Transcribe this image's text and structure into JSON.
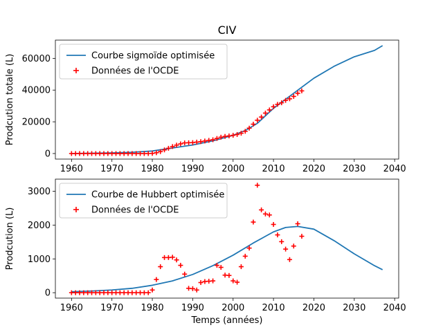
{
  "figure": {
    "title": "CIV"
  },
  "chart_data": [
    {
      "type": "line",
      "title": "CIV",
      "xlabel": "",
      "ylabel": "Prodcution totale (L)",
      "xlim": [
        1956,
        2041
      ],
      "ylim": [
        -3500,
        71500
      ],
      "xticks": [
        1960,
        1970,
        1980,
        1990,
        2000,
        2010,
        2020,
        2030,
        2040
      ],
      "yticks": [
        0,
        20000,
        40000,
        60000
      ],
      "ytick_labels": [
        "0",
        "20000",
        "40000",
        "60000"
      ],
      "legend_position": "top-left",
      "series": [
        {
          "name": "Courbe sigmoïde optimisée",
          "type": "line",
          "color": "#1f77b4",
          "x": [
            1960,
            1965,
            1970,
            1975,
            1980,
            1985,
            1990,
            1995,
            2000,
            2003,
            2006,
            2010,
            2015,
            2020,
            2025,
            2030,
            2035,
            2037
          ],
          "y": [
            0,
            200,
            400,
            800,
            1600,
            3500,
            5400,
            8000,
            11500,
            14500,
            19000,
            28500,
            38000,
            47500,
            55000,
            61000,
            65000,
            68000
          ]
        },
        {
          "name": "Données de l'OCDE",
          "type": "scatter",
          "marker": "plus",
          "color": "#ff0000",
          "x": [
            1960,
            1961,
            1962,
            1963,
            1964,
            1965,
            1966,
            1967,
            1968,
            1969,
            1970,
            1971,
            1972,
            1973,
            1974,
            1975,
            1976,
            1977,
            1978,
            1979,
            1980,
            1981,
            1982,
            1983,
            1984,
            1985,
            1986,
            1987,
            1988,
            1989,
            1990,
            1991,
            1992,
            1993,
            1994,
            1995,
            1996,
            1997,
            1998,
            1999,
            2000,
            2001,
            2002,
            2003,
            2004,
            2005,
            2006,
            2007,
            2008,
            2009,
            2010,
            2011,
            2012,
            2013,
            2014,
            2015,
            2016,
            2017
          ],
          "y": [
            0,
            0,
            0,
            0,
            0,
            0,
            0,
            0,
            0,
            0,
            0,
            0,
            0,
            0,
            0,
            0,
            0,
            0,
            0,
            0,
            100,
            500,
            1200,
            2300,
            3300,
            4400,
            5300,
            6100,
            6700,
            6800,
            6900,
            7200,
            7500,
            7900,
            8300,
            8700,
            9500,
            10300,
            10800,
            11100,
            11500,
            12000,
            12800,
            14000,
            16000,
            18500,
            21000,
            23000,
            25500,
            27500,
            29500,
            31000,
            32000,
            33500,
            34500,
            36000,
            38000,
            39500
          ]
        }
      ]
    },
    {
      "type": "line",
      "title": "",
      "xlabel": "Temps (années)",
      "ylabel": "Prodcution (L)",
      "xlim": [
        1956,
        2041
      ],
      "ylim": [
        -160,
        3360
      ],
      "xticks": [
        1960,
        1970,
        1980,
        1990,
        2000,
        2010,
        2020,
        2030,
        2040
      ],
      "yticks": [
        0,
        1000,
        2000,
        3000
      ],
      "ytick_labels": [
        "0",
        "1000",
        "2000",
        "3000"
      ],
      "legend_position": "top-left",
      "series": [
        {
          "name": "Courbe de Hubbert optimisée",
          "type": "line",
          "color": "#1f77b4",
          "x": [
            1960,
            1965,
            1970,
            1975,
            1980,
            1985,
            1990,
            1995,
            2000,
            2005,
            2010,
            2013,
            2016,
            2020,
            2025,
            2030,
            2035,
            2037
          ],
          "y": [
            30,
            50,
            80,
            130,
            220,
            350,
            540,
            800,
            1110,
            1470,
            1800,
            1930,
            1960,
            1880,
            1540,
            1150,
            800,
            680
          ]
        },
        {
          "name": "Données de l'OCDE",
          "type": "scatter",
          "marker": "plus",
          "color": "#ff0000",
          "x": [
            1960,
            1961,
            1962,
            1963,
            1964,
            1965,
            1966,
            1967,
            1968,
            1969,
            1970,
            1971,
            1972,
            1973,
            1974,
            1975,
            1976,
            1977,
            1978,
            1979,
            1980,
            1981,
            1982,
            1983,
            1984,
            1985,
            1986,
            1987,
            1988,
            1989,
            1990,
            1991,
            1992,
            1993,
            1994,
            1995,
            1996,
            1997,
            1998,
            1999,
            2000,
            2001,
            2002,
            2003,
            2004,
            2005,
            2006,
            2007,
            2008,
            2009,
            2010,
            2011,
            2012,
            2013,
            2014,
            2015,
            2016,
            2017
          ],
          "y": [
            0,
            0,
            0,
            0,
            0,
            0,
            0,
            0,
            0,
            0,
            0,
            0,
            0,
            0,
            0,
            0,
            0,
            0,
            0,
            0,
            80,
            390,
            770,
            1040,
            1040,
            1050,
            970,
            810,
            550,
            130,
            120,
            80,
            300,
            330,
            340,
            350,
            810,
            750,
            520,
            510,
            350,
            310,
            770,
            1080,
            1320,
            2090,
            3180,
            2450,
            2330,
            2300,
            2020,
            1710,
            1510,
            1290,
            980,
            1380,
            2040,
            1670
          ]
        }
      ]
    }
  ]
}
